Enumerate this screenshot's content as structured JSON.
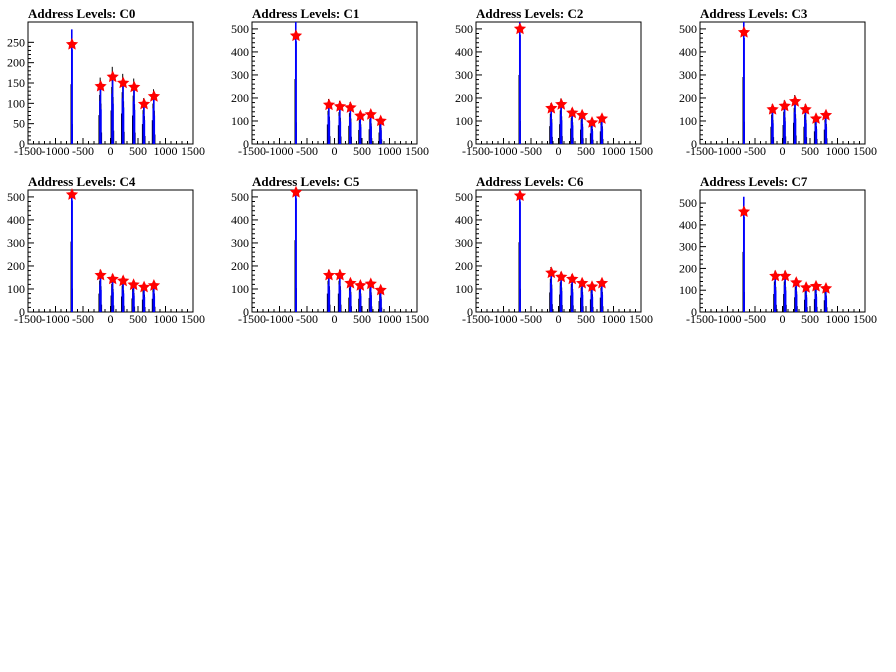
{
  "chart_data": [
    {
      "type": "bar",
      "title": "Address Levels: C0",
      "xlim": [
        -1500,
        1500
      ],
      "ylim": [
        0,
        300
      ],
      "xticks": [
        -1500,
        -1000,
        -500,
        0,
        500,
        1000,
        1500
      ],
      "yticks": [
        0,
        50,
        100,
        150,
        200,
        250
      ],
      "peaks": [
        {
          "x": -700,
          "y": 245
        },
        {
          "x": -180,
          "y": 142
        },
        {
          "x": 40,
          "y": 165
        },
        {
          "x": 230,
          "y": 150
        },
        {
          "x": 430,
          "y": 140
        },
        {
          "x": 610,
          "y": 98
        },
        {
          "x": 790,
          "y": 117
        }
      ]
    },
    {
      "type": "bar",
      "title": "Address Levels: C1",
      "xlim": [
        -1500,
        1500
      ],
      "ylim": [
        0,
        530
      ],
      "xticks": [
        -1500,
        -1000,
        -500,
        0,
        500,
        1000,
        1500
      ],
      "yticks": [
        0,
        100,
        200,
        300,
        400,
        500
      ],
      "peaks": [
        {
          "x": -700,
          "y": 470
        },
        {
          "x": -100,
          "y": 170
        },
        {
          "x": 100,
          "y": 163
        },
        {
          "x": 290,
          "y": 158
        },
        {
          "x": 470,
          "y": 122
        },
        {
          "x": 660,
          "y": 128
        },
        {
          "x": 840,
          "y": 100
        }
      ]
    },
    {
      "type": "bar",
      "title": "Address Levels: C2",
      "xlim": [
        -1500,
        1500
      ],
      "ylim": [
        0,
        530
      ],
      "xticks": [
        -1500,
        -1000,
        -500,
        0,
        500,
        1000,
        1500
      ],
      "yticks": [
        0,
        100,
        200,
        300,
        400,
        500
      ],
      "peaks": [
        {
          "x": -700,
          "y": 500
        },
        {
          "x": -130,
          "y": 155
        },
        {
          "x": 50,
          "y": 172
        },
        {
          "x": 250,
          "y": 135
        },
        {
          "x": 430,
          "y": 125
        },
        {
          "x": 610,
          "y": 93
        },
        {
          "x": 790,
          "y": 110
        }
      ]
    },
    {
      "type": "bar",
      "title": "Address Levels: C3",
      "xlim": [
        -1500,
        1500
      ],
      "ylim": [
        0,
        530
      ],
      "xticks": [
        -1500,
        -1000,
        -500,
        0,
        500,
        1000,
        1500
      ],
      "yticks": [
        0,
        100,
        200,
        300,
        400,
        500
      ],
      "peaks": [
        {
          "x": -700,
          "y": 485
        },
        {
          "x": -180,
          "y": 150
        },
        {
          "x": 40,
          "y": 165
        },
        {
          "x": 230,
          "y": 185
        },
        {
          "x": 420,
          "y": 150
        },
        {
          "x": 610,
          "y": 110
        },
        {
          "x": 790,
          "y": 125
        }
      ]
    },
    {
      "type": "bar",
      "title": "Address Levels: C4",
      "xlim": [
        -1500,
        1500
      ],
      "ylim": [
        0,
        530
      ],
      "xticks": [
        -1500,
        -1000,
        -500,
        0,
        500,
        1000,
        1500
      ],
      "yticks": [
        0,
        100,
        200,
        300,
        400,
        500
      ],
      "peaks": [
        {
          "x": -700,
          "y": 510
        },
        {
          "x": -180,
          "y": 160
        },
        {
          "x": 40,
          "y": 143
        },
        {
          "x": 230,
          "y": 135
        },
        {
          "x": 420,
          "y": 118
        },
        {
          "x": 610,
          "y": 108
        },
        {
          "x": 790,
          "y": 115
        }
      ]
    },
    {
      "type": "bar",
      "title": "Address Levels: C5",
      "xlim": [
        -1500,
        1500
      ],
      "ylim": [
        0,
        530
      ],
      "xticks": [
        -1500,
        -1000,
        -500,
        0,
        500,
        1000,
        1500
      ],
      "yticks": [
        0,
        100,
        200,
        300,
        400,
        500
      ],
      "peaks": [
        {
          "x": -700,
          "y": 520
        },
        {
          "x": -100,
          "y": 160
        },
        {
          "x": 100,
          "y": 160
        },
        {
          "x": 290,
          "y": 125
        },
        {
          "x": 470,
          "y": 115
        },
        {
          "x": 660,
          "y": 122
        },
        {
          "x": 840,
          "y": 95
        }
      ]
    },
    {
      "type": "bar",
      "title": "Address Levels: C6",
      "xlim": [
        -1500,
        1500
      ],
      "ylim": [
        0,
        530
      ],
      "xticks": [
        -1500,
        -1000,
        -500,
        0,
        500,
        1000,
        1500
      ],
      "yticks": [
        0,
        100,
        200,
        300,
        400,
        500
      ],
      "peaks": [
        {
          "x": -700,
          "y": 505
        },
        {
          "x": -130,
          "y": 170
        },
        {
          "x": 50,
          "y": 152
        },
        {
          "x": 250,
          "y": 143
        },
        {
          "x": 430,
          "y": 125
        },
        {
          "x": 610,
          "y": 110
        },
        {
          "x": 790,
          "y": 125
        }
      ]
    },
    {
      "type": "bar",
      "title": "Address Levels: C7",
      "xlim": [
        -1500,
        1500
      ],
      "ylim": [
        0,
        560
      ],
      "xticks": [
        -1500,
        -1000,
        -500,
        0,
        500,
        1000,
        1500
      ],
      "yticks": [
        0,
        100,
        200,
        300,
        400,
        500
      ],
      "peaks": [
        {
          "x": -700,
          "y": 460
        },
        {
          "x": -130,
          "y": 165
        },
        {
          "x": 50,
          "y": 165
        },
        {
          "x": 250,
          "y": 135
        },
        {
          "x": 430,
          "y": 112
        },
        {
          "x": 610,
          "y": 118
        },
        {
          "x": 790,
          "y": 108
        }
      ]
    }
  ],
  "colors": {
    "histogram_black": "#000000",
    "histogram_blue": "#0000ff",
    "marker_red": "#ff0000"
  }
}
